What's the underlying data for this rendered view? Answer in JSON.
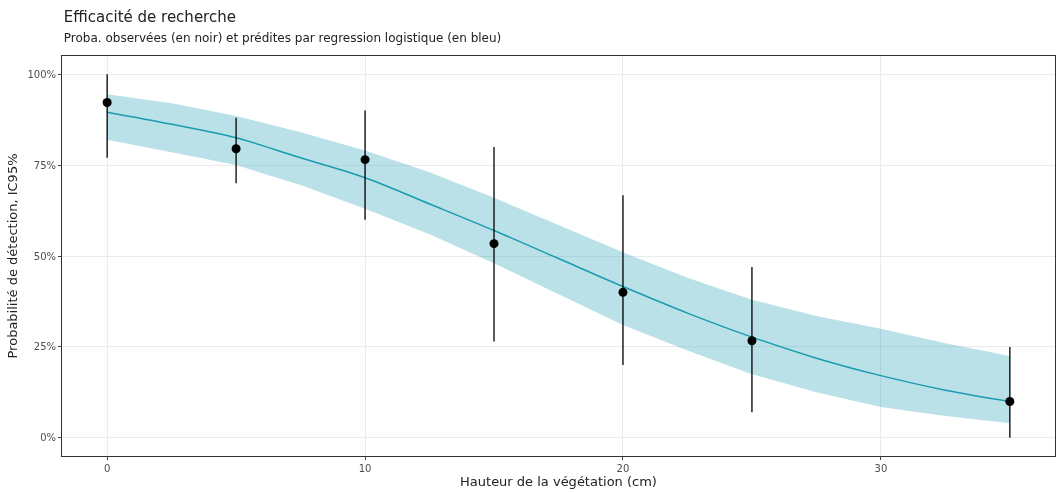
{
  "chart_data": {
    "type": "scatter",
    "title": "Efficacité de recherche",
    "subtitle": "Proba. observées (en noir) et prédites par regression logistique (en bleu)",
    "xlabel": "Hauteur de la végétation (cm)",
    "ylabel": "Probabilité de détection, IC95%",
    "xlim": [
      -1.75,
      36.75
    ],
    "xticks": [
      0,
      10,
      20,
      30
    ],
    "ylim": [
      -5,
      105
    ],
    "yticks": [
      {
        "value": 0,
        "label": "0%"
      },
      {
        "value": 25,
        "label": "25%"
      },
      {
        "value": 50,
        "label": "50%"
      },
      {
        "value": 75,
        "label": "75%"
      },
      {
        "value": 100,
        "label": "100%"
      }
    ],
    "grid": true,
    "legend": false,
    "series": [
      {
        "type": "line",
        "color": "#1a9bb0",
        "x": [
          0,
          2.5,
          5,
          7.5,
          10,
          12.5,
          15,
          17.5,
          20,
          22.5,
          25,
          27.5,
          30,
          32.5,
          35
        ],
        "values": [
          89.5,
          86.2,
          82.5,
          77,
          71.5,
          64.3,
          57,
          49.3,
          41.6,
          34.3,
          27.7,
          21.9,
          17.1,
          13.1,
          10
        ],
        "lower": [
          82,
          78.5,
          75,
          69.5,
          63,
          56,
          48,
          39.5,
          31,
          24,
          17.5,
          12.5,
          8.5,
          6,
          4
        ],
        "upper": [
          94.5,
          92,
          88.5,
          84,
          79,
          73,
          66,
          58.5,
          51,
          44,
          38,
          33.5,
          30,
          26,
          22.5
        ]
      },
      {
        "color": "#000000",
        "marker": "circle",
        "x": [
          0,
          5,
          10,
          15,
          20,
          25,
          35
        ],
        "values": [
          92.2,
          79.5,
          76.5,
          53.4,
          40,
          26.7,
          10
        ],
        "errors": [
          [
            77,
            100
          ],
          [
            70,
            88
          ],
          [
            60,
            90
          ],
          [
            26.5,
            80
          ],
          [
            20,
            66.7
          ],
          [
            7,
            47
          ],
          [
            0,
            25
          ]
        ]
      }
    ]
  }
}
